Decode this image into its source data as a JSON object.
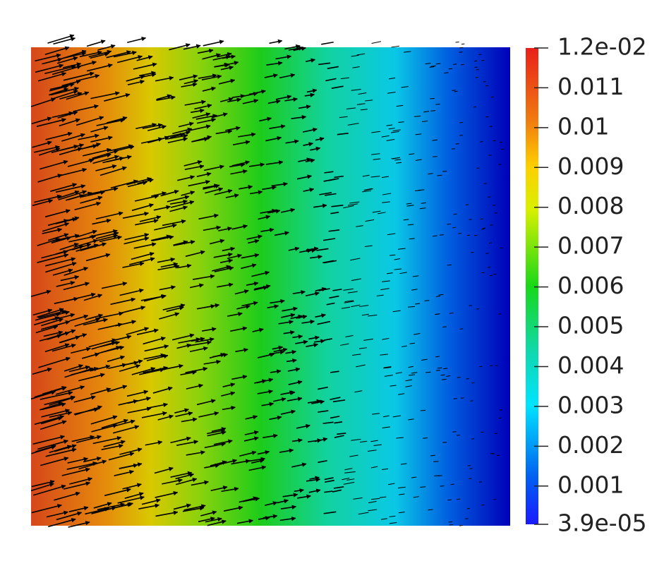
{
  "colorbar": {
    "range": [
      3.9e-05,
      0.012
    ],
    "ticks": [
      {
        "value": 0.012,
        "label": "1.2e-02"
      },
      0.011,
      0.01,
      0.009,
      0.008,
      0.007,
      0.006,
      0.005,
      0.004,
      0.003,
      0.002,
      0.001,
      {
        "value": 3.9e-05,
        "label": "3.9e-05"
      }
    ]
  }
}
